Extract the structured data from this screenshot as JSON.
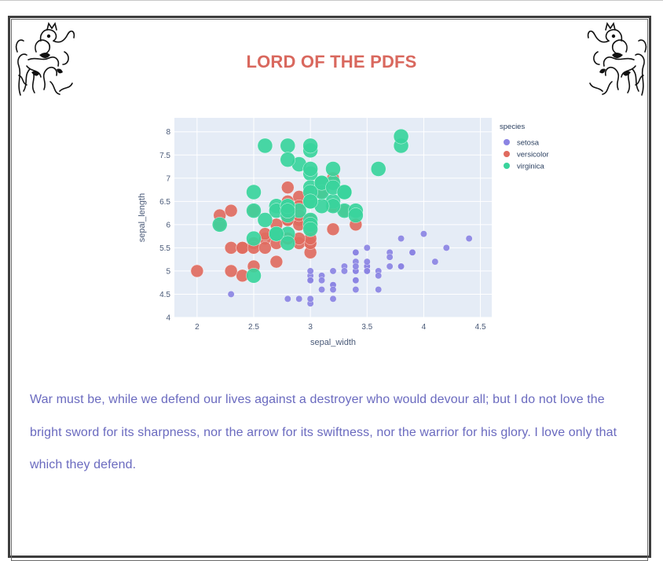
{
  "page": {
    "title": "LORD OF THE PDFS",
    "quote": "War must be, while we defend our lives against a destroyer who would devour all; but I do not love the bright sword for its sharpness, nor the arrow for its swiftness, nor the warrior for his glory. I love only that which they defend."
  },
  "decorations": {
    "left": "heraldic-lion-crest-icon",
    "right": "heraldic-lion-crest-icon"
  },
  "colors": {
    "title": "#d9685e",
    "quote": "#6a6abf",
    "setosa": "#8b84e3",
    "versicolor": "#e06b5f",
    "virginica": "#3ad49c",
    "plot_bg": "#e5ecf6"
  },
  "chart_data": {
    "type": "scatter",
    "xlabel": "sepal_width",
    "ylabel": "sepal_length",
    "xlim": [
      1.8,
      4.6
    ],
    "ylim": [
      4,
      8.3
    ],
    "xticks": [
      "2",
      "2.5",
      "3",
      "3.5",
      "4",
      "4.5"
    ],
    "yticks": [
      "4",
      "4.5",
      "5",
      "5.5",
      "6",
      "6.5",
      "7",
      "7.5",
      "8"
    ],
    "grid": true,
    "legend": {
      "title": "species",
      "placement": "right"
    },
    "marker_size": "varies by species",
    "series": [
      {
        "name": "setosa",
        "color": "#8b84e3",
        "points": [
          [
            3.5,
            5.1
          ],
          [
            3.0,
            4.9
          ],
          [
            3.2,
            4.7
          ],
          [
            3.1,
            4.6
          ],
          [
            3.6,
            5.0
          ],
          [
            3.9,
            5.4
          ],
          [
            3.4,
            4.6
          ],
          [
            3.4,
            5.0
          ],
          [
            2.9,
            4.4
          ],
          [
            3.1,
            4.9
          ],
          [
            3.7,
            5.4
          ],
          [
            3.4,
            4.8
          ],
          [
            3.0,
            4.8
          ],
          [
            3.0,
            4.3
          ],
          [
            4.0,
            5.8
          ],
          [
            4.4,
            5.7
          ],
          [
            3.9,
            5.4
          ],
          [
            3.5,
            5.1
          ],
          [
            3.8,
            5.7
          ],
          [
            3.8,
            5.1
          ],
          [
            3.4,
            5.4
          ],
          [
            3.7,
            5.1
          ],
          [
            3.6,
            4.6
          ],
          [
            3.3,
            5.1
          ],
          [
            3.4,
            4.8
          ],
          [
            3.0,
            5.0
          ],
          [
            3.4,
            5.0
          ],
          [
            3.5,
            5.2
          ],
          [
            3.4,
            5.2
          ],
          [
            3.2,
            4.7
          ],
          [
            3.1,
            4.8
          ],
          [
            3.4,
            5.4
          ],
          [
            4.1,
            5.2
          ],
          [
            4.2,
            5.5
          ],
          [
            3.2,
            5.0
          ],
          [
            3.5,
            5.5
          ],
          [
            3.6,
            4.9
          ],
          [
            3.0,
            4.4
          ],
          [
            3.4,
            5.1
          ],
          [
            3.5,
            5.0
          ],
          [
            2.3,
            4.5
          ],
          [
            3.2,
            4.4
          ],
          [
            3.5,
            5.0
          ],
          [
            3.8,
            5.1
          ],
          [
            3.0,
            4.8
          ],
          [
            3.8,
            5.1
          ],
          [
            3.2,
            4.6
          ],
          [
            3.7,
            5.3
          ],
          [
            3.3,
            5.0
          ],
          [
            2.8,
            4.4
          ]
        ]
      },
      {
        "name": "versicolor",
        "color": "#e06b5f",
        "points": [
          [
            3.2,
            7.0
          ],
          [
            3.2,
            6.4
          ],
          [
            3.1,
            6.9
          ],
          [
            2.3,
            5.5
          ],
          [
            2.8,
            6.5
          ],
          [
            2.8,
            5.7
          ],
          [
            3.3,
            6.3
          ],
          [
            2.4,
            4.9
          ],
          [
            2.9,
            6.6
          ],
          [
            2.7,
            5.2
          ],
          [
            2.0,
            5.0
          ],
          [
            3.0,
            5.9
          ],
          [
            2.2,
            6.0
          ],
          [
            2.9,
            6.1
          ],
          [
            2.9,
            5.6
          ],
          [
            3.1,
            6.7
          ],
          [
            3.0,
            5.6
          ],
          [
            2.7,
            5.8
          ],
          [
            2.2,
            6.2
          ],
          [
            2.5,
            5.6
          ],
          [
            3.2,
            5.9
          ],
          [
            2.8,
            6.1
          ],
          [
            2.5,
            6.3
          ],
          [
            2.8,
            6.1
          ],
          [
            2.9,
            6.4
          ],
          [
            3.0,
            6.6
          ],
          [
            2.8,
            6.8
          ],
          [
            3.0,
            6.7
          ],
          [
            2.9,
            6.0
          ],
          [
            2.6,
            5.7
          ],
          [
            2.4,
            5.5
          ],
          [
            2.4,
            5.5
          ],
          [
            2.7,
            5.8
          ],
          [
            2.7,
            6.0
          ],
          [
            3.0,
            5.4
          ],
          [
            3.4,
            6.0
          ],
          [
            3.1,
            6.7
          ],
          [
            2.3,
            6.3
          ],
          [
            3.0,
            5.6
          ],
          [
            2.5,
            5.5
          ],
          [
            2.6,
            5.5
          ],
          [
            3.0,
            6.1
          ],
          [
            2.6,
            5.8
          ],
          [
            2.3,
            5.0
          ],
          [
            2.7,
            5.6
          ],
          [
            3.0,
            5.7
          ],
          [
            2.9,
            5.7
          ],
          [
            2.9,
            6.2
          ],
          [
            2.5,
            5.1
          ],
          [
            2.8,
            5.7
          ]
        ]
      },
      {
        "name": "virginica",
        "color": "#3ad49c",
        "points": [
          [
            3.3,
            6.3
          ],
          [
            2.7,
            5.8
          ],
          [
            3.0,
            7.1
          ],
          [
            2.9,
            6.3
          ],
          [
            3.0,
            6.5
          ],
          [
            3.0,
            7.6
          ],
          [
            2.5,
            4.9
          ],
          [
            2.9,
            7.3
          ],
          [
            2.5,
            6.7
          ],
          [
            3.6,
            7.2
          ],
          [
            3.2,
            6.5
          ],
          [
            2.7,
            6.4
          ],
          [
            3.0,
            6.8
          ],
          [
            2.5,
            5.7
          ],
          [
            2.8,
            5.8
          ],
          [
            3.2,
            6.4
          ],
          [
            3.0,
            6.5
          ],
          [
            3.8,
            7.7
          ],
          [
            2.6,
            7.7
          ],
          [
            2.2,
            6.0
          ],
          [
            3.2,
            6.9
          ],
          [
            2.8,
            5.6
          ],
          [
            2.8,
            7.7
          ],
          [
            2.7,
            6.3
          ],
          [
            3.3,
            6.7
          ],
          [
            3.2,
            7.2
          ],
          [
            2.8,
            6.2
          ],
          [
            3.0,
            6.1
          ],
          [
            2.8,
            6.4
          ],
          [
            3.0,
            7.2
          ],
          [
            2.8,
            7.4
          ],
          [
            3.8,
            7.9
          ],
          [
            2.8,
            6.4
          ],
          [
            2.8,
            6.3
          ],
          [
            2.6,
            6.1
          ],
          [
            3.0,
            7.7
          ],
          [
            3.4,
            6.3
          ],
          [
            3.1,
            6.4
          ],
          [
            3.0,
            6.0
          ],
          [
            3.1,
            6.9
          ],
          [
            3.1,
            6.7
          ],
          [
            3.1,
            6.9
          ],
          [
            2.7,
            5.8
          ],
          [
            3.2,
            6.8
          ],
          [
            3.3,
            6.7
          ],
          [
            3.0,
            6.7
          ],
          [
            2.5,
            6.3
          ],
          [
            3.0,
            6.5
          ],
          [
            3.4,
            6.2
          ],
          [
            3.0,
            5.9
          ]
        ]
      }
    ]
  }
}
